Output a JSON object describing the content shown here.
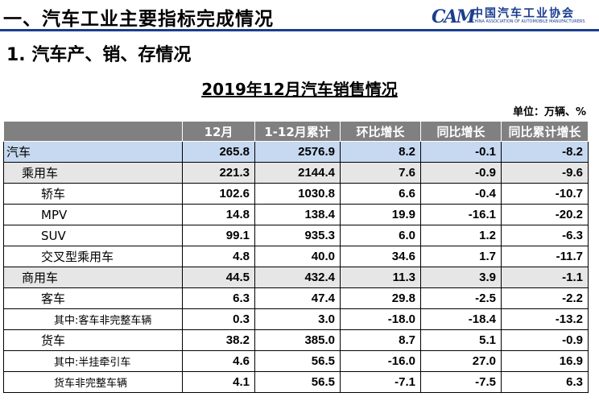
{
  "header": {
    "section_title": "一、汽车工业主要指标完成情况",
    "logo_mark": "CAM",
    "logo_cn": "中国汽车工业协会",
    "logo_en": "CHINA ASSOCIATION OF AUTOMOBILE MANUFACTURERS"
  },
  "subtitle": "1. 汽车产、销、存情况",
  "table_title": "2019年12月汽车销售情况",
  "unit": "单位：万辆、%",
  "columns": [
    "",
    "12月",
    "1-12月累计",
    "环比增长",
    "同比增长",
    "同比累计增长"
  ],
  "rows": [
    {
      "name": "汽车",
      "dec": "265.8",
      "ytd": "2576.9",
      "mom": "8.2",
      "yoy": "-0.1",
      "yoy_cum": "-8.2"
    },
    {
      "name": "乘用车",
      "dec": "221.3",
      "ytd": "2144.4",
      "mom": "7.6",
      "yoy": "-0.9",
      "yoy_cum": "-9.6"
    },
    {
      "name": "轿车",
      "dec": "102.6",
      "ytd": "1030.8",
      "mom": "6.6",
      "yoy": "-0.4",
      "yoy_cum": "-10.7"
    },
    {
      "name": "MPV",
      "dec": "14.8",
      "ytd": "138.4",
      "mom": "19.9",
      "yoy": "-16.1",
      "yoy_cum": "-20.2"
    },
    {
      "name": "SUV",
      "dec": "99.1",
      "ytd": "935.3",
      "mom": "6.0",
      "yoy": "1.2",
      "yoy_cum": "-6.3"
    },
    {
      "name": "交叉型乘用车",
      "dec": "4.8",
      "ytd": "40.0",
      "mom": "34.6",
      "yoy": "1.7",
      "yoy_cum": "-11.7"
    },
    {
      "name": "商用车",
      "dec": "44.5",
      "ytd": "432.4",
      "mom": "11.3",
      "yoy": "3.9",
      "yoy_cum": "-1.1"
    },
    {
      "name": "客车",
      "dec": "6.3",
      "ytd": "47.4",
      "mom": "29.8",
      "yoy": "-2.5",
      "yoy_cum": "-2.2"
    },
    {
      "name": "其中:客车非完整车辆",
      "dec": "0.3",
      "ytd": "3.0",
      "mom": "-18.0",
      "yoy": "-18.4",
      "yoy_cum": "-13.2"
    },
    {
      "name": "货车",
      "dec": "38.2",
      "ytd": "385.0",
      "mom": "8.7",
      "yoy": "5.1",
      "yoy_cum": "-0.9"
    },
    {
      "name": "其中:半挂牵引车",
      "dec": "4.6",
      "ytd": "56.5",
      "mom": "-16.0",
      "yoy": "27.0",
      "yoy_cum": "16.9"
    },
    {
      "name": "货车非完整车辆",
      "dec": "4.1",
      "ytd": "56.5",
      "mom": "-7.1",
      "yoy": "-7.5",
      "yoy_cum": "6.3"
    }
  ]
}
